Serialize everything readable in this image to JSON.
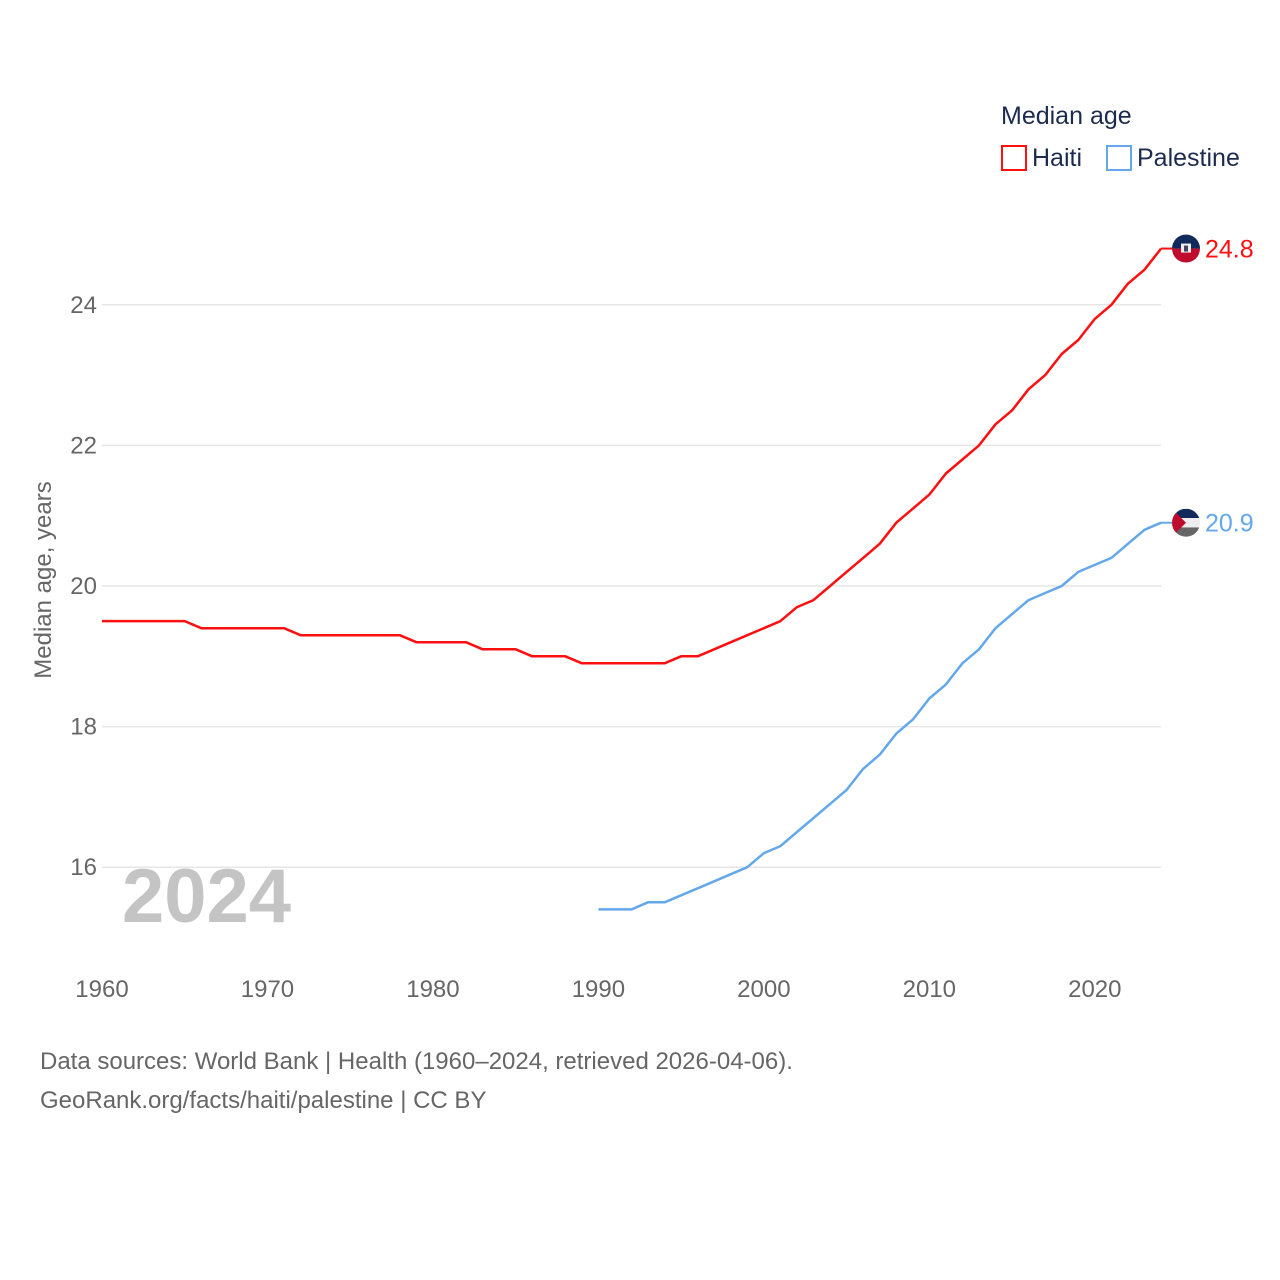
{
  "chart_data": {
    "type": "line",
    "ylabel": "Median age, years",
    "xlabel": "",
    "xlim": [
      1960,
      2024
    ],
    "ylim": [
      15,
      25
    ],
    "x_ticks": [
      1960,
      1970,
      1980,
      1990,
      2000,
      2010,
      2020
    ],
    "x_tick_labels": [
      "1960",
      "1970",
      "1980",
      "1990",
      "2000",
      "2010",
      "2020"
    ],
    "y_ticks": [
      16,
      18,
      20,
      22,
      24
    ],
    "y_tick_labels": [
      "16",
      "18",
      "20",
      "22",
      "24"
    ],
    "grid": true,
    "legend": {
      "title": "Median age",
      "placement": "top-right"
    },
    "year_watermark": "2024",
    "series": [
      {
        "name": "Haiti",
        "color": "#ff0f0f",
        "end_label": "24.8",
        "flag": "haiti-flag",
        "x_start": 1960,
        "values": [
          19.5,
          19.5,
          19.5,
          19.5,
          19.5,
          19.5,
          19.4,
          19.4,
          19.4,
          19.4,
          19.4,
          19.4,
          19.3,
          19.3,
          19.3,
          19.3,
          19.3,
          19.3,
          19.3,
          19.2,
          19.2,
          19.2,
          19.2,
          19.1,
          19.1,
          19.1,
          19.0,
          19.0,
          19.0,
          18.9,
          18.9,
          18.9,
          18.9,
          18.9,
          18.9,
          19.0,
          19.0,
          19.1,
          19.2,
          19.3,
          19.4,
          19.5,
          19.7,
          19.8,
          20.0,
          20.2,
          20.4,
          20.6,
          20.9,
          21.1,
          21.3,
          21.6,
          21.8,
          22.0,
          22.3,
          22.5,
          22.8,
          23.0,
          23.3,
          23.5,
          23.8,
          24.0,
          24.3,
          24.5,
          24.8
        ]
      },
      {
        "name": "Palestine",
        "color": "#64a8eb",
        "end_label": "20.9",
        "flag": "palestine-flag",
        "x_start": 1990,
        "values": [
          15.4,
          15.4,
          15.4,
          15.5,
          15.5,
          15.6,
          15.7,
          15.8,
          15.9,
          16.0,
          16.2,
          16.3,
          16.5,
          16.7,
          16.9,
          17.1,
          17.4,
          17.6,
          17.9,
          18.1,
          18.4,
          18.6,
          18.9,
          19.1,
          19.4,
          19.6,
          19.8,
          19.9,
          20.0,
          20.2,
          20.3,
          20.4,
          20.6,
          20.8,
          20.9
        ]
      }
    ]
  },
  "footer": {
    "line1": "Data sources: World Bank | Health (1960–2024, retrieved 2026-04-06).",
    "line2": "GeoRank.org/facts/haiti/palestine | CC BY"
  }
}
